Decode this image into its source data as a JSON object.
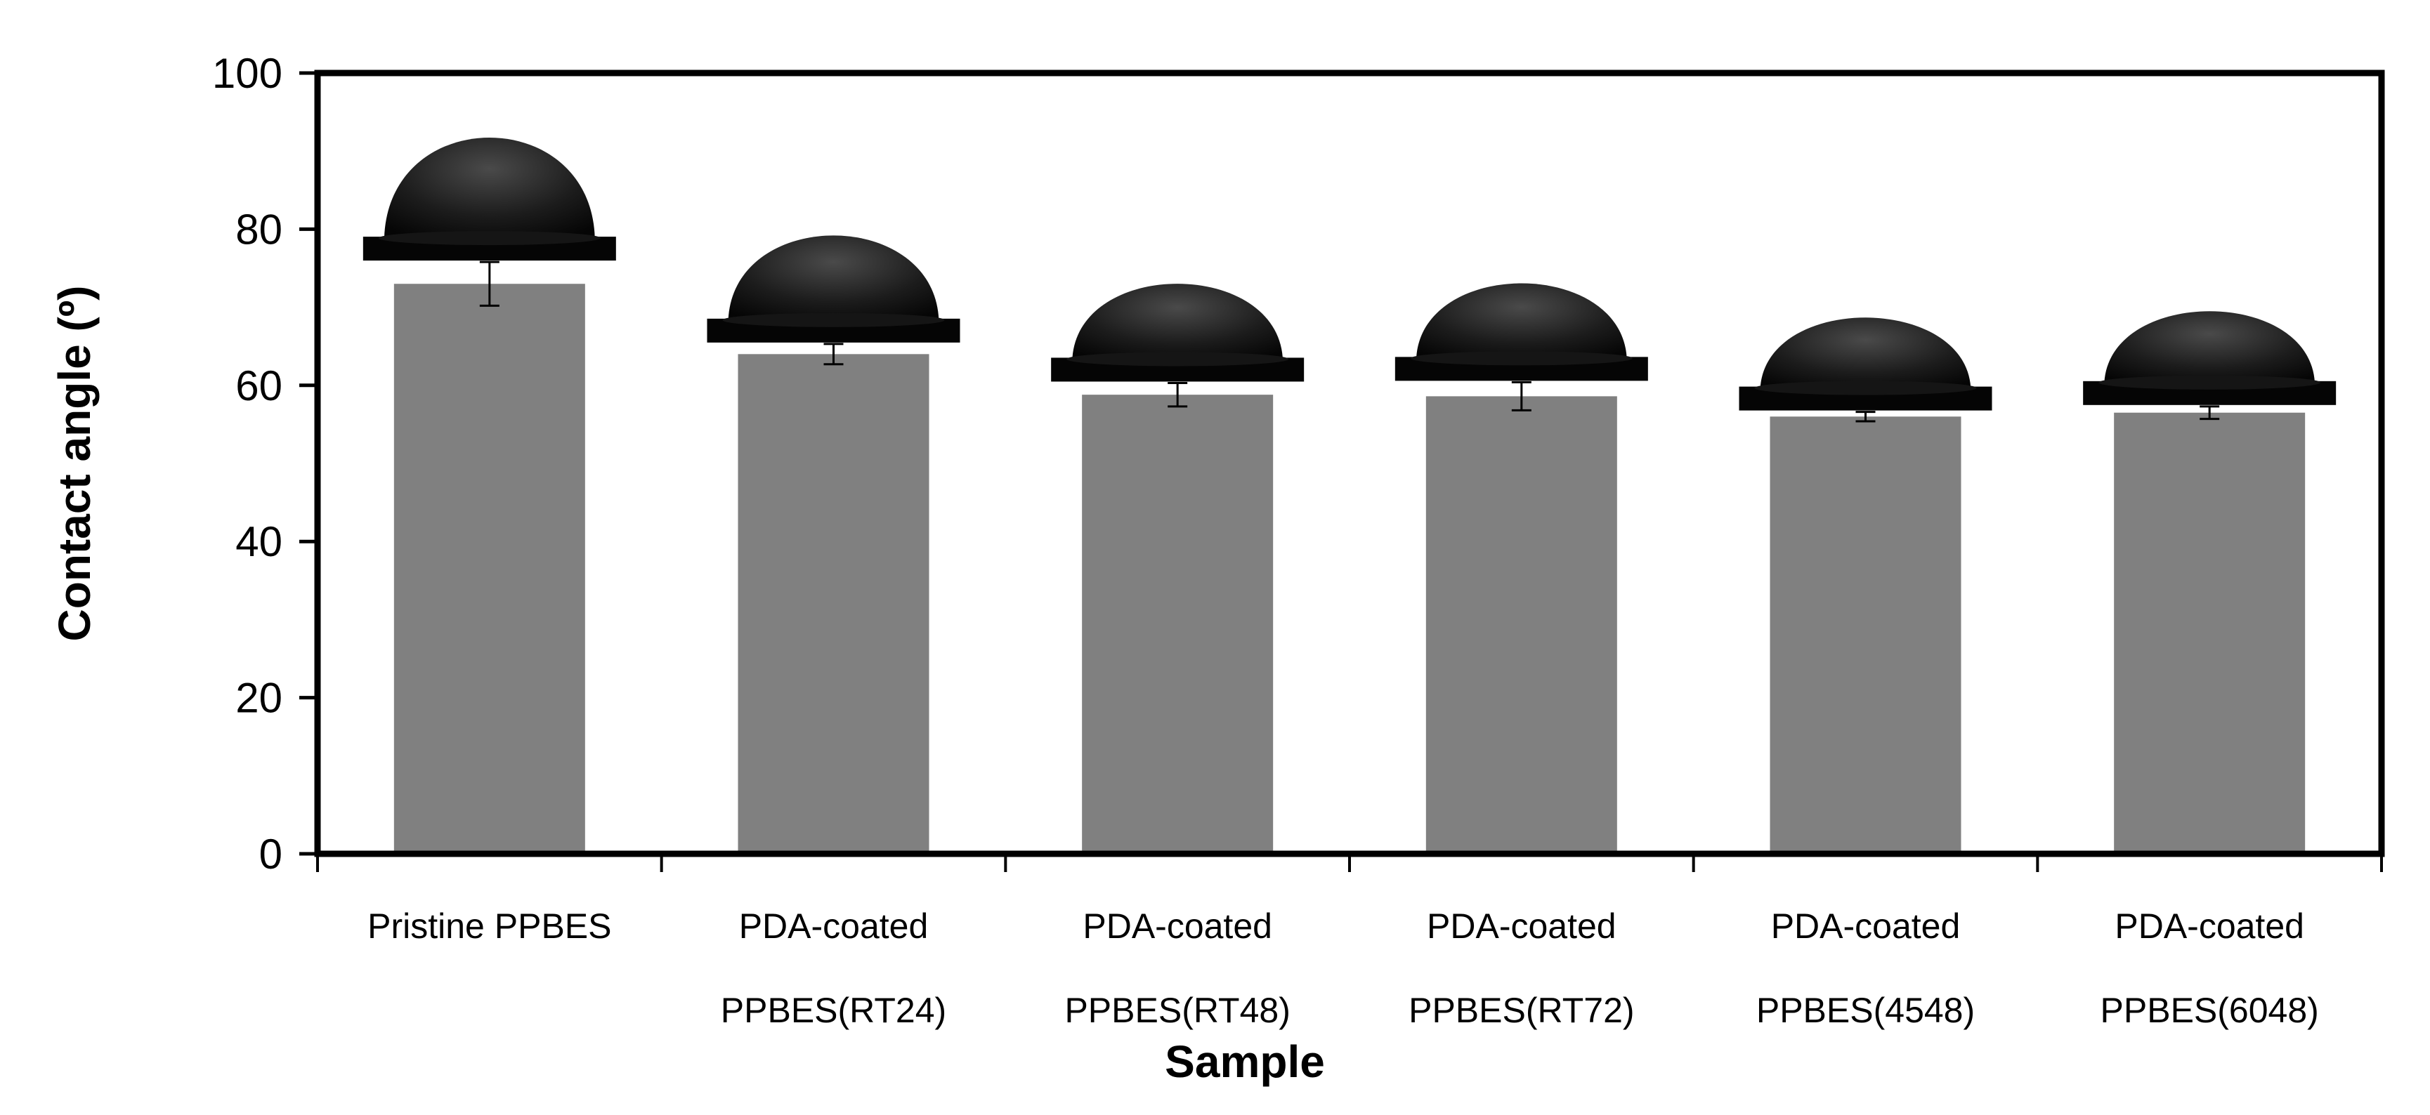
{
  "chart_data": {
    "type": "bar",
    "title": "",
    "xlabel": "Sample",
    "ylabel": "Contact angle (º)",
    "ylim": [
      0,
      100
    ],
    "yticks": [
      "0",
      "20",
      "40",
      "60",
      "80",
      "100"
    ],
    "categories": [
      [
        "Pristine PPBES"
      ],
      [
        "PDA-coated",
        "PPBES(RT24)"
      ],
      [
        "PDA-coated",
        "PPBES(RT48)"
      ],
      [
        "PDA-coated",
        "PPBES(RT72)"
      ],
      [
        "PDA-coated",
        "PPBES(4548)"
      ],
      [
        "PDA-coated",
        "PPBES(6048)"
      ]
    ],
    "values": [
      73,
      64,
      58.8,
      58.6,
      56,
      56.5
    ],
    "errors": [
      2.8,
      1.3,
      1.5,
      1.8,
      0.6,
      0.8
    ],
    "bar_color": "#808080",
    "grid": false,
    "legend": "none",
    "annotations": "water droplet images above each bar"
  }
}
